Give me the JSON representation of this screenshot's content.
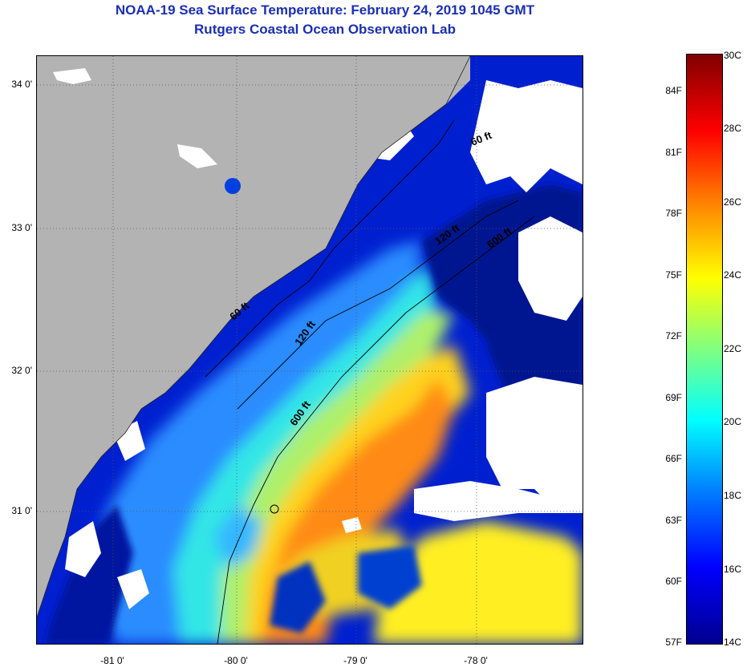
{
  "header": {
    "title": "NOAA-19 Sea Surface Temperature:  February 24, 2019 1045 GMT",
    "subtitle": "Rutgers Coastal Ocean Observation Lab"
  },
  "map": {
    "lat_labels": [
      "34 0'",
      "33 0'",
      "32 0'",
      "31 0'"
    ],
    "lon_labels": [
      "-81 0'",
      "-80 0'",
      "-79 0'",
      "-78 0'"
    ],
    "depth_contours": [
      "60 ft",
      "120 ft",
      "600 ft",
      "60 ft",
      "120 ft",
      "600 ft"
    ],
    "land_color": "#b3b3b3",
    "cloud_color": "#ffffff",
    "grid": "dotted"
  },
  "colorbar": {
    "fahrenheit_labels": [
      "84F",
      "81F",
      "78F",
      "75F",
      "72F",
      "69F",
      "66F",
      "63F",
      "60F",
      "57F"
    ],
    "celsius_labels": [
      "30C",
      "28C",
      "26C",
      "24C",
      "22C",
      "20C",
      "18C",
      "16C",
      "14C"
    ],
    "range_c": [
      14,
      30
    ],
    "colors": [
      "#00008f",
      "#0000ff",
      "#0080ff",
      "#00ffff",
      "#80ff80",
      "#ffff00",
      "#ff8000",
      "#ff0000",
      "#800000"
    ]
  }
}
